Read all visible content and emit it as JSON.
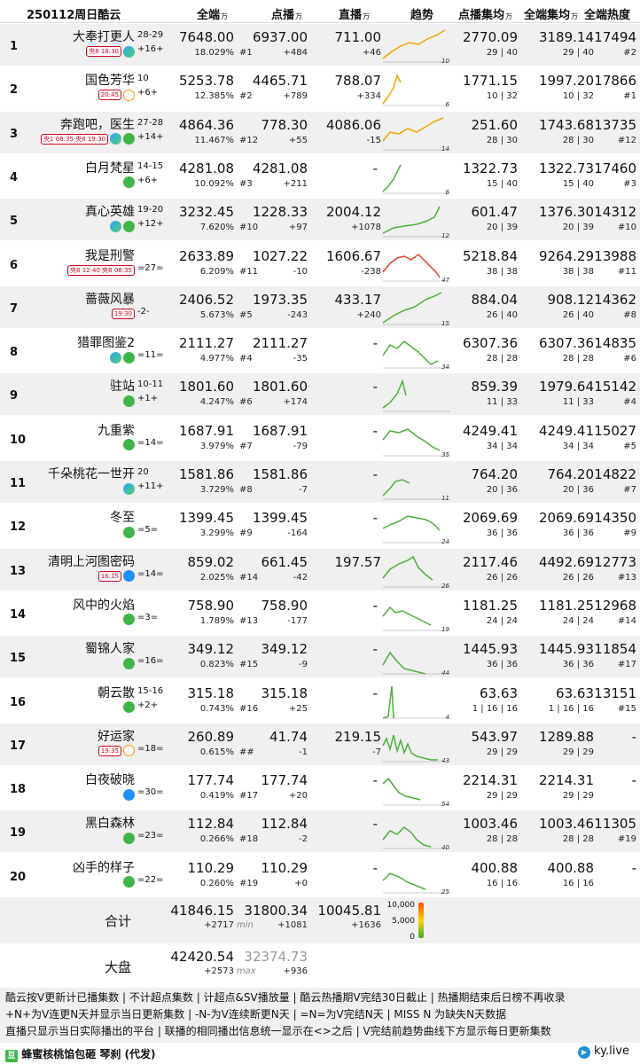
{
  "header": {
    "title": "250112周日酷云",
    "col_all": "全端",
    "col_vod": "点播",
    "col_live": "直播",
    "col_trend": "趋势",
    "col_vod_avg": "点播集均",
    "col_all_avg": "全端集均",
    "col_heat": "全端热度",
    "unit": "万"
  },
  "rows": [
    {
      "rank": "1",
      "title": "大奉打更人",
      "ep": "28-29",
      "change": "+16+",
      "slot": "央8 18:30",
      "slot_days": "16",
      "platforms": [
        "tx"
      ],
      "all": "7648.00",
      "all_pct": "18.029%",
      "vod": "6937.00",
      "vod_rank": "#1",
      "vod_delta": "+484",
      "live": "711.00",
      "live_delta": "+46",
      "vavg": "2770.09",
      "vavg_sub": "29 | 40",
      "aavg": "3189.14",
      "aavg_sub": "29 | 40",
      "heat": "17494",
      "heat_rank": "#2",
      "trend_end": "10"
    },
    {
      "rank": "2",
      "title": "国色芳华",
      "ep": "10",
      "change": "+6+",
      "slot": "20:45",
      "slot_days": "5-6",
      "platforms": [
        "mg"
      ],
      "all": "5253.78",
      "all_pct": "12.385%",
      "vod": "4465.71",
      "vod_rank": "#2",
      "vod_delta": "+789",
      "live": "788.07",
      "live_delta": "+334",
      "vavg": "1771.15",
      "vavg_sub": "10 | 32",
      "aavg": "1997.20",
      "aavg_sub": "10 | 32",
      "heat": "17866",
      "heat_rank": "#1",
      "trend_end": "6"
    },
    {
      "rank": "3",
      "title": "奔跑吧，医生",
      "ep": "27-28",
      "change": "+14+",
      "slot": "央1 08:35 央8 19:30",
      "slot_days": "21-24 / 27-28",
      "platforms": [
        "tx",
        "iq"
      ],
      "all": "4864.36",
      "all_pct": "11.467%",
      "vod": "778.30",
      "vod_rank": "#12",
      "vod_delta": "+55",
      "live": "4086.06",
      "live_delta": "-15",
      "vavg": "251.60",
      "vavg_sub": "28 | 30",
      "aavg": "1743.68",
      "aavg_sub": "28 | 30",
      "heat": "13735",
      "heat_rank": "#12",
      "trend_end": "14"
    },
    {
      "rank": "4",
      "title": "白月梵星",
      "ep": "14-15",
      "change": "+6+",
      "slot": "",
      "slot_days": "",
      "platforms": [
        "iq"
      ],
      "all": "4281.08",
      "all_pct": "10.092%",
      "vod": "4281.08",
      "vod_rank": "#3",
      "vod_delta": "+211",
      "live": "-",
      "live_delta": "",
      "vavg": "1322.73",
      "vavg_sub": "15 | 40",
      "aavg": "1322.73",
      "aavg_sub": "15 | 40",
      "heat": "17460",
      "heat_rank": "#3",
      "trend_end": "6"
    },
    {
      "rank": "5",
      "title": "真心英雄",
      "ep": "19-20",
      "change": "+12+",
      "slot": "",
      "slot_days": "",
      "platforms": [
        "tx",
        "iq"
      ],
      "all": "3232.45",
      "all_pct": "7.620%",
      "vod": "1228.33",
      "vod_rank": "#10",
      "vod_delta": "+97",
      "live": "2004.12",
      "live_delta": "+1078",
      "vavg": "601.47",
      "vavg_sub": "20 | 39",
      "aavg": "1376.30",
      "aavg_sub": "20 | 39",
      "heat": "14312",
      "heat_rank": "#10",
      "trend_end": "12"
    },
    {
      "rank": "6",
      "title": "我是刑警",
      "ep": "",
      "change": "=27=",
      "slot": "央8 12:40 央8 08:35",
      "slot_days": "5-8 / 30-32",
      "platforms": [],
      "all": "2633.89",
      "all_pct": "6.209%",
      "vod": "1027.22",
      "vod_rank": "#11",
      "vod_delta": "-10",
      "live": "1606.67",
      "live_delta": "-238",
      "vavg": "5218.84",
      "vavg_sub": "38 | 38",
      "aavg": "9264.29",
      "aavg_sub": "38 | 38",
      "heat": "13988",
      "heat_rank": "#11",
      "trend_end": "47"
    },
    {
      "rank": "7",
      "title": "蔷薇风暴",
      "ep": "",
      "change": "-2-",
      "slot": "19:30",
      "slot_days": "2-3",
      "platforms": [],
      "all": "2406.52",
      "all_pct": "5.673%",
      "vod": "1973.35",
      "vod_rank": "#5",
      "vod_delta": "-243",
      "live": "433.17",
      "live_delta": "+240",
      "vavg": "884.04",
      "vavg_sub": "26 | 40",
      "aavg": "908.12",
      "aavg_sub": "26 | 40",
      "heat": "14362",
      "heat_rank": "#8",
      "trend_end": "15"
    },
    {
      "rank": "8",
      "title": "猎罪图鉴2",
      "ep": "",
      "change": "=11=",
      "slot": "",
      "slot_days": "",
      "platforms": [
        "tx",
        "iq"
      ],
      "all": "2111.27",
      "all_pct": "4.977%",
      "vod": "2111.27",
      "vod_rank": "#4",
      "vod_delta": "-35",
      "live": "-",
      "live_delta": "",
      "vavg": "6307.36",
      "vavg_sub": "28 | 28",
      "aavg": "6307.36",
      "aavg_sub": "28 | 28",
      "heat": "14835",
      "heat_rank": "#6",
      "trend_end": "34"
    },
    {
      "rank": "9",
      "title": "驻站",
      "ep": "10-11",
      "change": "+1+",
      "slot": "",
      "slot_days": "",
      "platforms": [
        "iq"
      ],
      "all": "1801.60",
      "all_pct": "4.247%",
      "vod": "1801.60",
      "vod_rank": "#6",
      "vod_delta": "+174",
      "live": "-",
      "live_delta": "",
      "vavg": "859.39",
      "vavg_sub": "11 | 33",
      "aavg": "1979.64",
      "aavg_sub": "11 | 33",
      "heat": "15142",
      "heat_rank": "#4",
      "trend_end": ""
    },
    {
      "rank": "10",
      "title": "九重紫",
      "ep": "",
      "change": "=14=",
      "slot": "",
      "slot_days": "",
      "platforms": [
        "iq"
      ],
      "all": "1687.91",
      "all_pct": "3.979%",
      "vod": "1687.91",
      "vod_rank": "#7",
      "vod_delta": "-79",
      "live": "-",
      "live_delta": "",
      "vavg": "4249.41",
      "vavg_sub": "34 | 34",
      "aavg": "4249.41",
      "aavg_sub": "34 | 34",
      "heat": "15027",
      "heat_rank": "#5",
      "trend_end": "35"
    },
    {
      "rank": "11",
      "title": "千朵桃花一世开",
      "ep": "20",
      "change": "+11+",
      "slot": "",
      "slot_days": "",
      "platforms": [
        "tx"
      ],
      "all": "1581.86",
      "all_pct": "3.729%",
      "vod": "1581.86",
      "vod_rank": "#8",
      "vod_delta": "-7",
      "live": "-",
      "live_delta": "",
      "vavg": "764.20",
      "vavg_sub": "20 | 36",
      "aavg": "764.20",
      "aavg_sub": "20 | 36",
      "heat": "14822",
      "heat_rank": "#7",
      "trend_end": "11"
    },
    {
      "rank": "12",
      "title": "冬至",
      "ep": "",
      "change": "=5=",
      "slot": "",
      "slot_days": "",
      "platforms": [
        "iq"
      ],
      "all": "1399.45",
      "all_pct": "3.299%",
      "vod": "1399.45",
      "vod_rank": "#9",
      "vod_delta": "-164",
      "live": "-",
      "live_delta": "",
      "vavg": "2069.69",
      "vavg_sub": "36 | 36",
      "aavg": "2069.69",
      "aavg_sub": "36 | 36",
      "heat": "14350",
      "heat_rank": "#9",
      "trend_end": "24"
    },
    {
      "rank": "13",
      "title": "清明上河图密码",
      "ep": "",
      "change": "=14=",
      "slot": "16:15",
      "slot_days": "",
      "platforms": [
        "yk"
      ],
      "all": "859.02",
      "all_pct": "2.025%",
      "vod": "661.45",
      "vod_rank": "#14",
      "vod_delta": "-42",
      "live": "197.57",
      "live_delta": "",
      "vavg": "2117.46",
      "vavg_sub": "26 | 26",
      "aavg": "4492.69",
      "aavg_sub": "26 | 26",
      "heat": "12773",
      "heat_rank": "#13",
      "trend_end": "26"
    },
    {
      "rank": "14",
      "title": "风中的火焰",
      "ep": "",
      "change": "=3=",
      "slot": "",
      "slot_days": "",
      "platforms": [
        "iq"
      ],
      "all": "758.90",
      "all_pct": "1.789%",
      "vod": "758.90",
      "vod_rank": "#13",
      "vod_delta": "-177",
      "live": "-",
      "live_delta": "",
      "vavg": "1181.25",
      "vavg_sub": "24 | 24",
      "aavg": "1181.25",
      "aavg_sub": "24 | 24",
      "heat": "12968",
      "heat_rank": "#14",
      "trend_end": "19"
    },
    {
      "rank": "15",
      "title": "蜀锦人家",
      "ep": "",
      "change": "=16=",
      "slot": "",
      "slot_days": "",
      "platforms": [
        "iq"
      ],
      "all": "349.12",
      "all_pct": "0.823%",
      "vod": "349.12",
      "vod_rank": "#15",
      "vod_delta": "-9",
      "live": "-",
      "live_delta": "",
      "vavg": "1445.93",
      "vavg_sub": "36 | 36",
      "aavg": "1445.93",
      "aavg_sub": "36 | 36",
      "heat": "11854",
      "heat_rank": "#17",
      "trend_end": "44"
    },
    {
      "rank": "16",
      "title": "朝云散",
      "ep": "15-16",
      "change": "+2+",
      "slot": "",
      "slot_days": "",
      "platforms": [
        "iq"
      ],
      "all": "315.18",
      "all_pct": "0.743%",
      "vod": "315.18",
      "vod_rank": "#16",
      "vod_delta": "+25",
      "live": "-",
      "live_delta": "",
      "vavg": "63.63",
      "vavg_sub": "1 | 16 | 16",
      "aavg": "63.63",
      "aavg_sub": "1 | 16 | 16",
      "heat": "13151",
      "heat_rank": "#15",
      "trend_end": "4"
    },
    {
      "rank": "17",
      "title": "好运家",
      "ep": "",
      "change": "=18=",
      "slot": "19:35",
      "slot_days": "25-26",
      "platforms": [
        "mg"
      ],
      "all": "260.89",
      "all_pct": "0.615%",
      "vod": "41.74",
      "vod_rank": "##",
      "vod_delta": "-1",
      "live": "219.15",
      "live_delta": "-7",
      "vavg": "543.97",
      "vavg_sub": "29 | 29",
      "aavg": "1289.88",
      "aavg_sub": "29 | 29",
      "heat": "-",
      "heat_rank": "",
      "trend_end": "43"
    },
    {
      "rank": "18",
      "title": "白夜破晓",
      "ep": "",
      "change": "=30=",
      "slot": "",
      "slot_days": "",
      "platforms": [
        "yk"
      ],
      "all": "177.74",
      "all_pct": "0.419%",
      "vod": "177.74",
      "vod_rank": "#17",
      "vod_delta": "+20",
      "live": "-",
      "live_delta": "",
      "vavg": "2214.31",
      "vavg_sub": "29 | 29",
      "aavg": "2214.31",
      "aavg_sub": "29 | 29",
      "heat": "-",
      "heat_rank": "",
      "trend_end": "54"
    },
    {
      "rank": "19",
      "title": "黑白森林",
      "ep": "",
      "change": "=23=",
      "slot": "",
      "slot_days": "",
      "platforms": [
        "iq"
      ],
      "all": "112.84",
      "all_pct": "0.266%",
      "vod": "112.84",
      "vod_rank": "#18",
      "vod_delta": "-2",
      "live": "-",
      "live_delta": "",
      "vavg": "1003.46",
      "vavg_sub": "28 | 28",
      "aavg": "1003.46",
      "aavg_sub": "28 | 28",
      "heat": "11305",
      "heat_rank": "#19",
      "trend_end": "40"
    },
    {
      "rank": "20",
      "title": "凶手的样子",
      "ep": "",
      "change": "=22=",
      "slot": "",
      "slot_days": "",
      "platforms": [
        "iq"
      ],
      "all": "110.29",
      "all_pct": "0.260%",
      "vod": "110.29",
      "vod_rank": "#19",
      "vod_delta": "+0",
      "live": "-",
      "live_delta": "",
      "vavg": "400.88",
      "vavg_sub": "16 | 16",
      "aavg": "400.88",
      "aavg_sub": "16 | 16",
      "heat": "-",
      "heat_rank": "",
      "trend_end": "25"
    }
  ],
  "total": {
    "label": "合计",
    "all": "41846.15",
    "all_delta": "+2717",
    "vod": "31800.34",
    "vod_sub": "min",
    "vod_delta": "+1081",
    "live": "10045.81",
    "live_delta": "+1636",
    "legend": [
      "10,000",
      "5,000",
      "0"
    ]
  },
  "market": {
    "label": "大盘",
    "all": "42420.54",
    "all_delta": "+2573",
    "vod": "32374.73",
    "vod_sub": "max",
    "vod_delta": "+936"
  },
  "footnotes": [
    "酷云按V更新计已播集数 | 不计超点集数 | 计超点&SV播放量 | 酷云热播期V完结30日截止 | 热播期结束后日榜不再收录",
    "+N+为V连更N天并显示当日更新集数 | -N-为V连续断更N天 | =N=为V完结N天 | MISS N 为缺失N天数据",
    "直播只显示当日实际播出的平台 | 联播的相同播出信息统一显示在<>之后 | V完结前趋势曲线下方显示每日更新集数"
  ],
  "brand": "蜂蜜核桃馅包砸 琴刹 (代发)",
  "site": "ky.live"
}
